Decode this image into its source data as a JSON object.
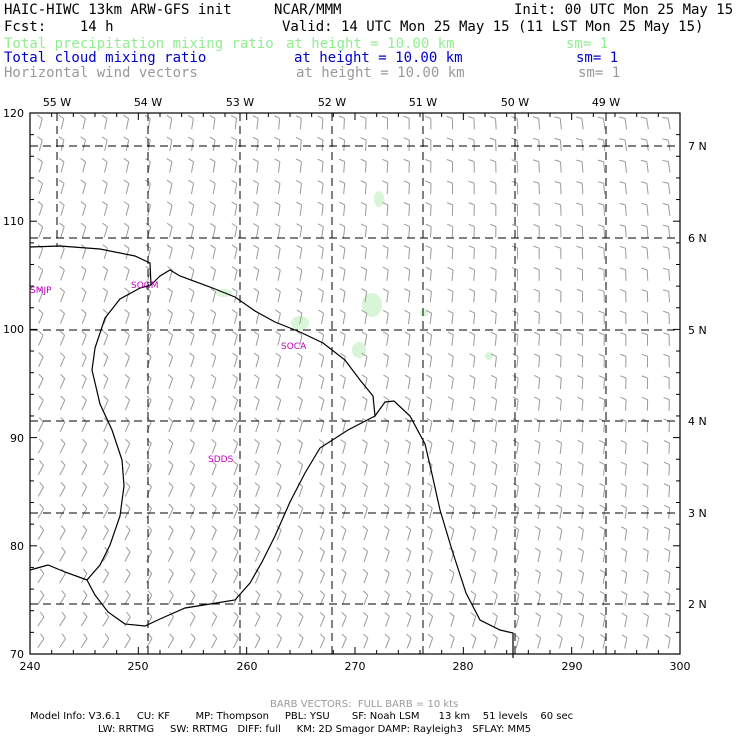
{
  "header": {
    "line1_left": "HAIC-HIWC 13km ARW-GFS init",
    "line1_center": "NCAR/MMM",
    "line1_right": "Init: 00 UTC Mon 25 May 15",
    "line2_left": "Fcst:    14 h",
    "line2_right": "Valid: 14 UTC Mon 25 May 15 (11 LST Mon 25 May 15)",
    "fields": [
      {
        "name": "Total precipitation mixing ratio",
        "height": "at height = 10.00 km",
        "sm": "sm= 1",
        "color": "#90ee90"
      },
      {
        "name": "Total cloud mixing ratio",
        "height": "at height = 10.00 km",
        "sm": "sm= 1",
        "color": "#0000cd"
      },
      {
        "name": "Horizontal wind vectors",
        "height": "at height = 10.00 km",
        "sm": "sm= 1",
        "color": "#9a9a9a"
      }
    ]
  },
  "map": {
    "top_labels": [
      "55 W",
      "54 W",
      "53 W",
      "52 W",
      "51 W",
      "50 W",
      "49 W"
    ],
    "right_labels": [
      "7 N",
      "6 N",
      "5 N",
      "4 N",
      "3 N",
      "2 N"
    ],
    "x_ticks": [
      "240",
      "250",
      "260",
      "270",
      "280",
      "290",
      "300"
    ],
    "y_ticks": [
      "70",
      "80",
      "90",
      "100",
      "110",
      "120"
    ],
    "stations": [
      "SMJP",
      "SOCA",
      "SOGM",
      "SDDS"
    ],
    "barb_color": "#9a9a9a",
    "coast_color": "#000000",
    "precip_color": "#d8f5d8"
  },
  "footer": {
    "barb_note": "BARB VECTORS:  FULL BARB = 10 kts",
    "line1": "Model Info: V3.6.1     CU: KF        MP: Thompson     PBL: YSU       SF: Noah LSM      13 km    51 levels    60 sec",
    "line2": "LW: RRTMG     SW: RRTMG   DIFF: full     KM: 2D Smagor DAMP: Rayleigh3   SFLAY: MM5"
  }
}
